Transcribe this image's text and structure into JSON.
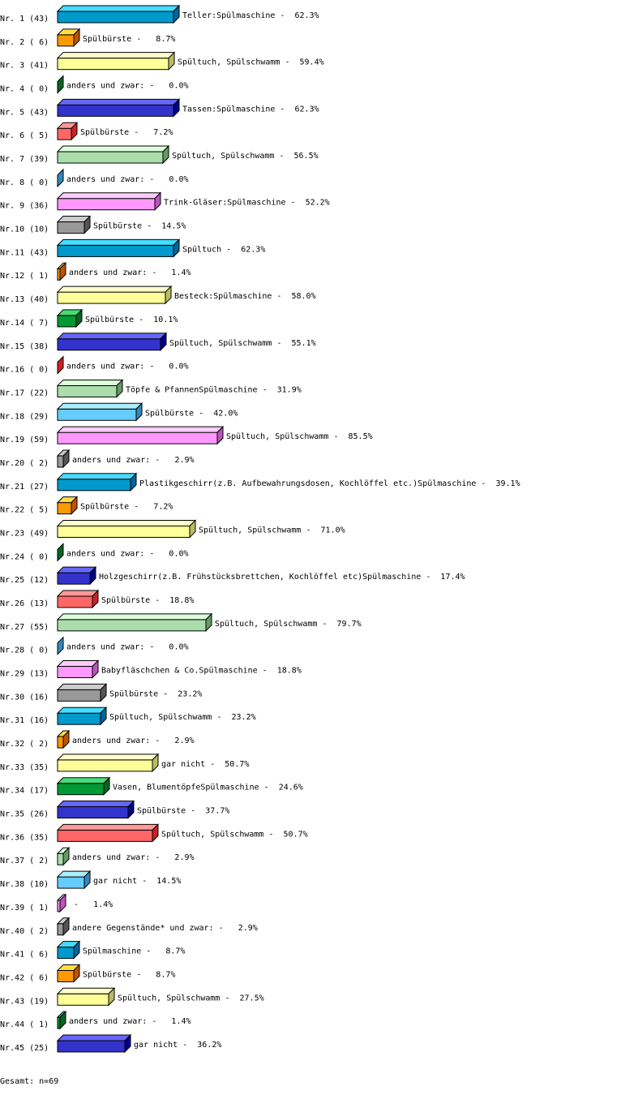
{
  "chart_data": {
    "type": "bar",
    "orientation": "horizontal",
    "style": "3d",
    "xlim": [
      0,
      100
    ],
    "unit": "%",
    "grid": false,
    "palette": [
      {
        "front": "#0099CC",
        "top": "#44DDFF",
        "side": "#006699"
      },
      {
        "front": "#FF9900",
        "top": "#FFDD44",
        "side": "#BB5500"
      },
      {
        "front": "#FFFF99",
        "top": "#FFFFCC",
        "side": "#BBBB66"
      },
      {
        "front": "#009933",
        "top": "#44DD77",
        "side": "#006622"
      },
      {
        "front": "#3333CC",
        "top": "#6666FF",
        "side": "#000088"
      },
      {
        "front": "#FF6666",
        "top": "#FF9999",
        "side": "#CC2222"
      },
      {
        "front": "#AADDAA",
        "top": "#DDFFDD",
        "side": "#669966"
      },
      {
        "front": "#66CCFF",
        "top": "#AAEEFF",
        "side": "#3388BB"
      },
      {
        "front": "#FF99FF",
        "top": "#FFCCFF",
        "side": "#BB55BB"
      },
      {
        "front": "#999999",
        "top": "#CCCCCC",
        "side": "#555555"
      }
    ],
    "rows": [
      {
        "id": "Nr. 1",
        "count": 43,
        "label": "Teller:Spülmaschine",
        "value": 62.3
      },
      {
        "id": "Nr. 2",
        "count": 6,
        "label": "Spülbürste",
        "value": 8.7
      },
      {
        "id": "Nr. 3",
        "count": 41,
        "label": "Spültuch, Spülschwamm",
        "value": 59.4
      },
      {
        "id": "Nr. 4",
        "count": 0,
        "label": "anders und zwar:",
        "value": 0.0
      },
      {
        "id": "Nr. 5",
        "count": 43,
        "label": "Tassen:Spülmaschine",
        "value": 62.3
      },
      {
        "id": "Nr. 6",
        "count": 5,
        "label": "Spülbürste",
        "value": 7.2
      },
      {
        "id": "Nr. 7",
        "count": 39,
        "label": "Spültuch, Spülschwamm",
        "value": 56.5
      },
      {
        "id": "Nr. 8",
        "count": 0,
        "label": "anders und zwar:",
        "value": 0.0
      },
      {
        "id": "Nr. 9",
        "count": 36,
        "label": "Trink-Gläser:Spülmaschine",
        "value": 52.2
      },
      {
        "id": "Nr.10",
        "count": 10,
        "label": "Spülbürste",
        "value": 14.5
      },
      {
        "id": "Nr.11",
        "count": 43,
        "label": "Spültuch",
        "value": 62.3
      },
      {
        "id": "Nr.12",
        "count": 1,
        "label": "anders und zwar:",
        "value": 1.4
      },
      {
        "id": "Nr.13",
        "count": 40,
        "label": "Besteck:Spülmaschine",
        "value": 58.0
      },
      {
        "id": "Nr.14",
        "count": 7,
        "label": "Spülbürste",
        "value": 10.1
      },
      {
        "id": "Nr.15",
        "count": 38,
        "label": "Spültuch, Spülschwamm",
        "value": 55.1
      },
      {
        "id": "Nr.16",
        "count": 0,
        "label": "anders und zwar:",
        "value": 0.0
      },
      {
        "id": "Nr.17",
        "count": 22,
        "label": "Töpfe & PfannenSpülmaschine",
        "value": 31.9
      },
      {
        "id": "Nr.18",
        "count": 29,
        "label": "Spülbürste",
        "value": 42.0
      },
      {
        "id": "Nr.19",
        "count": 59,
        "label": "Spültuch, Spülschwamm",
        "value": 85.5
      },
      {
        "id": "Nr.20",
        "count": 2,
        "label": "anders und zwar:",
        "value": 2.9
      },
      {
        "id": "Nr.21",
        "count": 27,
        "label": "Plastikgeschirr(z.B. Aufbewahrungsdosen, Kochlöffel etc.)Spülmaschine",
        "value": 39.1
      },
      {
        "id": "Nr.22",
        "count": 5,
        "label": "Spülbürste",
        "value": 7.2
      },
      {
        "id": "Nr.23",
        "count": 49,
        "label": "Spültuch, Spülschwamm",
        "value": 71.0
      },
      {
        "id": "Nr.24",
        "count": 0,
        "label": "anders und zwar:",
        "value": 0.0
      },
      {
        "id": "Nr.25",
        "count": 12,
        "label": "Holzgeschirr(z.B. Frühstücksbrettchen, Kochlöffel etc)Spülmaschine",
        "value": 17.4
      },
      {
        "id": "Nr.26",
        "count": 13,
        "label": "Spülbürste",
        "value": 18.8
      },
      {
        "id": "Nr.27",
        "count": 55,
        "label": "Spültuch, Spülschwamm",
        "value": 79.7
      },
      {
        "id": "Nr.28",
        "count": 0,
        "label": "anders und zwar:",
        "value": 0.0
      },
      {
        "id": "Nr.29",
        "count": 13,
        "label": "Babyfläschchen & Co.Spülmaschine",
        "value": 18.8
      },
      {
        "id": "Nr.30",
        "count": 16,
        "label": "Spülbürste",
        "value": 23.2
      },
      {
        "id": "Nr.31",
        "count": 16,
        "label": "Spültuch, Spülschwamm",
        "value": 23.2
      },
      {
        "id": "Nr.32",
        "count": 2,
        "label": "anders und zwar:",
        "value": 2.9
      },
      {
        "id": "Nr.33",
        "count": 35,
        "label": "gar nicht",
        "value": 50.7
      },
      {
        "id": "Nr.34",
        "count": 17,
        "label": "Vasen, BlumentöpfeSpülmaschine",
        "value": 24.6
      },
      {
        "id": "Nr.35",
        "count": 26,
        "label": "Spülbürste",
        "value": 37.7
      },
      {
        "id": "Nr.36",
        "count": 35,
        "label": "Spültuch, Spülschwamm",
        "value": 50.7
      },
      {
        "id": "Nr.37",
        "count": 2,
        "label": "anders und zwar:",
        "value": 2.9
      },
      {
        "id": "Nr.38",
        "count": 10,
        "label": "gar nicht",
        "value": 14.5
      },
      {
        "id": "Nr.39",
        "count": 1,
        "label": "",
        "value": 1.4
      },
      {
        "id": "Nr.40",
        "count": 2,
        "label": "andere Gegenstände* und zwar:",
        "value": 2.9
      },
      {
        "id": "Nr.41",
        "count": 6,
        "label": "Spülmaschine",
        "value": 8.7
      },
      {
        "id": "Nr.42",
        "count": 6,
        "label": "Spülbürste",
        "value": 8.7
      },
      {
        "id": "Nr.43",
        "count": 19,
        "label": "Spültuch, Spülschwamm",
        "value": 27.5
      },
      {
        "id": "Nr.44",
        "count": 1,
        "label": "anders und zwar:",
        "value": 1.4
      },
      {
        "id": "Nr.45",
        "count": 25,
        "label": "gar nicht",
        "value": 36.2
      }
    ],
    "footer": "Gesamt: n=69"
  }
}
